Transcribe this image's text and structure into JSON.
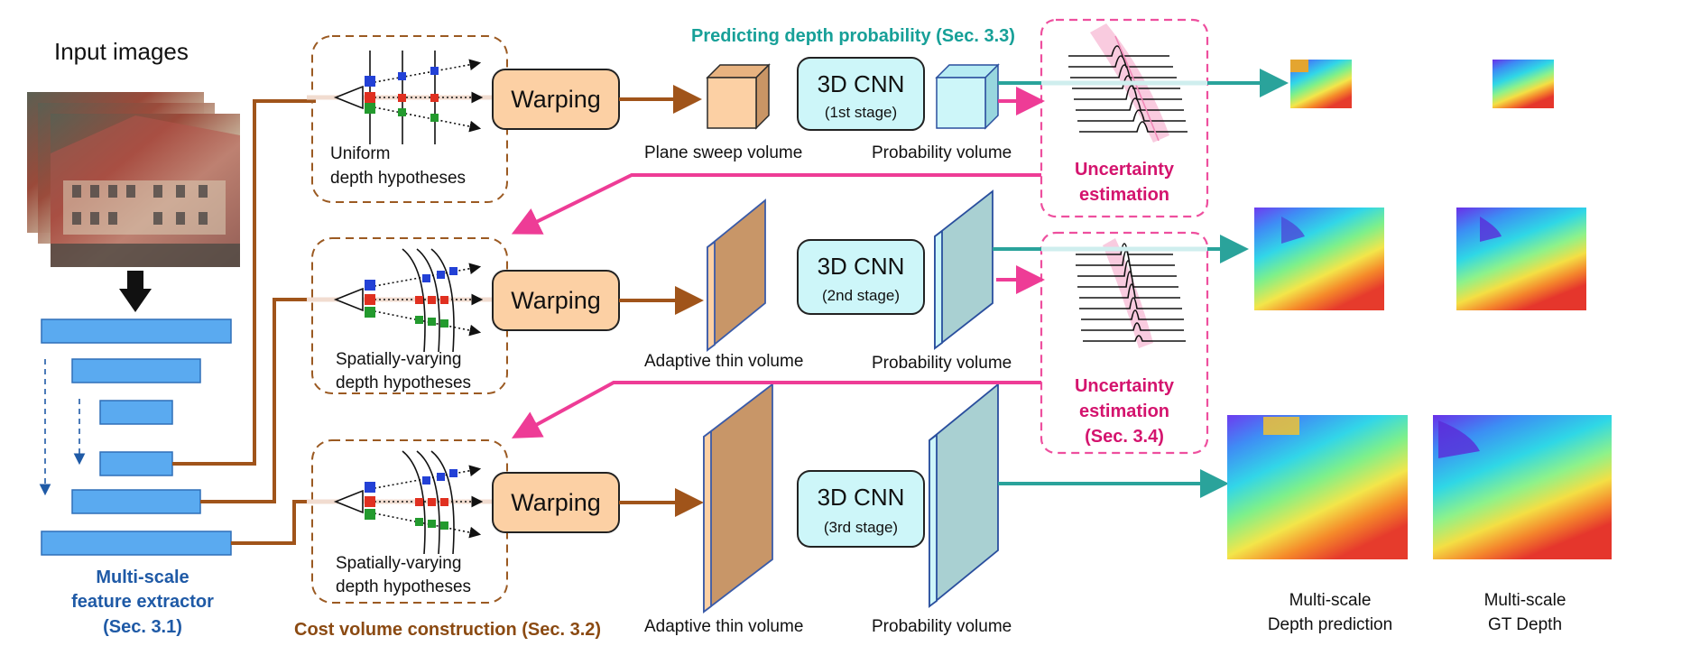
{
  "input": {
    "title": "Input images"
  },
  "feature_extractor": {
    "line1": "Multi-scale",
    "line2": "feature extractor",
    "line3": "(Sec. 3.1)"
  },
  "cost_volume": {
    "title": "Cost volume construction (Sec. 3.2)"
  },
  "hypotheses": {
    "uniform": {
      "line1": "Uniform",
      "line2": "depth hypotheses"
    },
    "spatial": {
      "line1": "Spatially-varying",
      "line2": "depth hypotheses"
    }
  },
  "warping": {
    "label": "Warping"
  },
  "volumes": {
    "plane_sweep": "Plane sweep volume",
    "adaptive_thin": "Adaptive thin volume",
    "probability": "Probability volume"
  },
  "cnn": {
    "label": "3D CNN",
    "stage1": "(1st stage)",
    "stage2": "(2nd stage)",
    "stage3": "(3rd  stage)"
  },
  "predicting": {
    "title": "Predicting depth probability (Sec. 3.3)"
  },
  "uncertainty": {
    "line1": "Uncertainty",
    "line2": "estimation",
    "sec": "(Sec. 3.4)"
  },
  "outputs": {
    "pred": {
      "line1": "Multi-scale",
      "line2": "Depth prediction"
    },
    "gt": {
      "line1": "Multi-scale",
      "line2": "GT Depth"
    }
  },
  "colors": {
    "feature_bar": "#5aaaf0",
    "brown": "#a0541a",
    "pink": "#ee3c96",
    "teal": "#2aa39b",
    "warp_fill": "#fcd0a4",
    "cnn_fill": "#cdf6f9",
    "prob_fill": "#a9d0d2",
    "dash_brown": "#9b5a22",
    "dash_pink": "#ee4f9e"
  }
}
